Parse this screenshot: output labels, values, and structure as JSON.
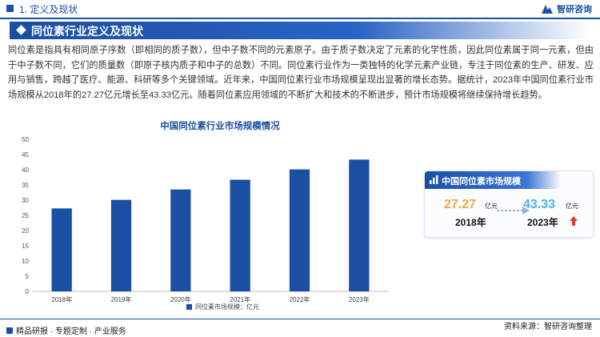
{
  "header": {
    "section_label": "1. 定义及现状",
    "logo_text": "智研咨询"
  },
  "banner": {
    "title": "同位素行业定义及现状"
  },
  "intro": {
    "paragraph": "同位素是指具有相同原子序数（即相同的质子数），但中子数不同的元素原子。由于质子数决定了元素的化学性质，因此同位素属于同一元素，但由于中子数不同，它们的质量数（即原子核内质子和中子的总数）不同。同位素行业作为一类独特的化学元素产业链，专注于同位素的生产、研发、应用与销售，跨越了医疗、能源、科研等多个关键领域。近年来，中国同位素行业市场规模呈现出显著的增长态势。据统计，2023年中国同位素行业市场规模从2018年的27.27亿元增长至43.33亿元。随着同位素应用领域的不断扩大和技术的不断进步，预计市场规模将继续保持增长趋势。"
  },
  "chart_data": {
    "type": "bar",
    "title": "中国同位素行业市场规模情况",
    "categories": [
      "2018年",
      "2019年",
      "2020年",
      "2021年",
      "2022年",
      "2023年"
    ],
    "series": [
      {
        "name": "同位素市场规模：亿元",
        "values": [
          27.27,
          30.1,
          33.5,
          36.7,
          40.1,
          43.33
        ]
      }
    ],
    "ylim": [
      0,
      50
    ],
    "yticks": [
      0,
      5,
      10,
      15,
      20,
      25,
      30,
      35,
      40,
      45,
      50
    ],
    "xlabel": "",
    "ylabel": "",
    "grid": false,
    "legend_position": "bottom",
    "bar_color": "#1a4fa3"
  },
  "card": {
    "title": "中国同位素市场规模",
    "left_value": "27.27",
    "left_unit": "亿元",
    "left_year": "2018年",
    "right_value": "43.33",
    "right_unit": "亿元",
    "right_year": "2023年",
    "left_value_color": "#f3a83b",
    "right_value_color": "#4bb3e8",
    "arrow_color": "#e03a2f"
  },
  "footer": {
    "left_text": "精品研报 · 专题定制 · 产业服务",
    "right_text": "资料来源：智研咨询整理"
  }
}
